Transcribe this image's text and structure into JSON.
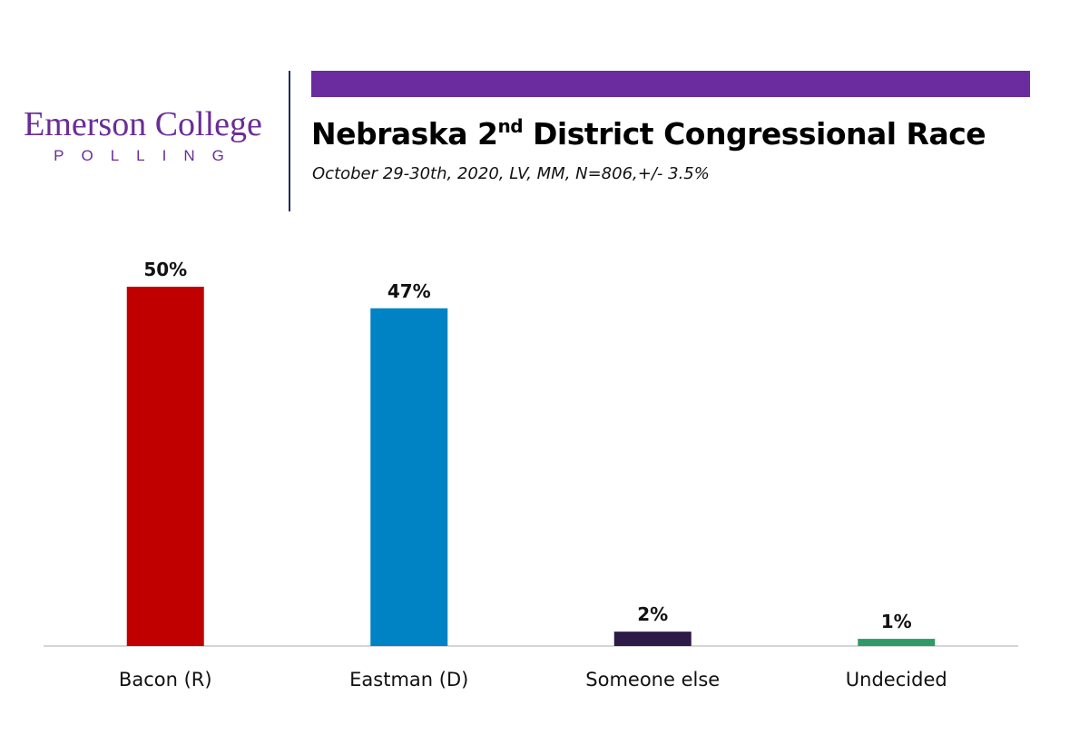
{
  "logo": {
    "main": "Emerson College",
    "sub": "POLLING"
  },
  "header": {
    "title_prefix": "Nebraska 2",
    "title_sup": "nd",
    "title_suffix": " District Congressional Race",
    "subtitle": "October 29-30th, 2020, LV, MM,  N=806,+/- 3.5%"
  },
  "colors": {
    "accent": "#6a2c9e",
    "logo": "#6a2d97",
    "divider": "#1f2d5c"
  },
  "chart_data": {
    "type": "bar",
    "categories": [
      "Bacon (R)",
      "Eastman (D)",
      "Someone else",
      "Undecided"
    ],
    "values": [
      50,
      47,
      2,
      1
    ],
    "value_labels": [
      "50%",
      "47%",
      "2%",
      "1%"
    ],
    "colors": [
      "#c00000",
      "#0083c4",
      "#2e1a47",
      "#2e9a68"
    ],
    "ylim": [
      0,
      50
    ],
    "grid": false,
    "legend": "none"
  }
}
